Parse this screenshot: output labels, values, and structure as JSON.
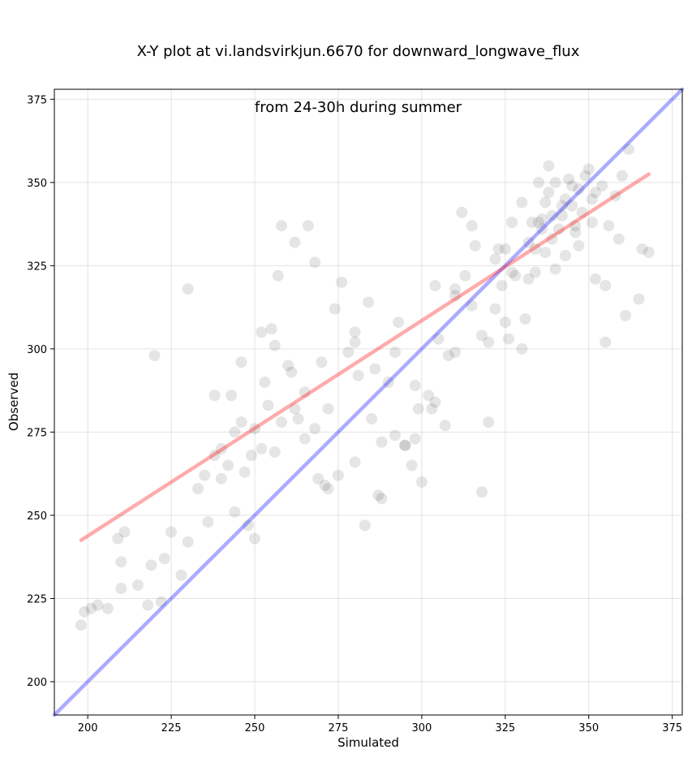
{
  "chart_data": {
    "type": "scatter",
    "title_line1": "X-Y plot at vi.landsvirkjun.6670 for downward_longwave_flux",
    "title_line2": "from 24-30h during summer",
    "xlabel": "Simulated",
    "ylabel": "Observed",
    "xlim": [
      190,
      378
    ],
    "ylim": [
      190,
      378
    ],
    "xticks": [
      200,
      225,
      250,
      275,
      300,
      325,
      350,
      375
    ],
    "yticks": [
      200,
      225,
      250,
      275,
      300,
      325,
      350,
      375
    ],
    "grid": true,
    "colors": {
      "points": "#000000",
      "one_to_one": "#0000ff",
      "fit": "#ff0000"
    },
    "one_to_one_line": {
      "x": [
        190,
        378
      ],
      "y": [
        190,
        378
      ]
    },
    "fit_line": {
      "x": [
        198,
        368
      ],
      "y": [
        242.5,
        352.5
      ]
    },
    "points": {
      "x": [
        198,
        199,
        201,
        203,
        206,
        209,
        210,
        210,
        211,
        215,
        218,
        219,
        222,
        223,
        225,
        228,
        230,
        233,
        235,
        238,
        240,
        242,
        244,
        246,
        247,
        248,
        250,
        252,
        254,
        256,
        258,
        260,
        262,
        265,
        268,
        270,
        272,
        275,
        278,
        280,
        283,
        285,
        288,
        290,
        292,
        295,
        298,
        300,
        302,
        305,
        308,
        310,
        313,
        315,
        318,
        320,
        322,
        324,
        325,
        327,
        328,
        330,
        332,
        333,
        334,
        335,
        336,
        337,
        338,
        339,
        340,
        341,
        342,
        343,
        344,
        345,
        346,
        347,
        348,
        349,
        350,
        351,
        352,
        354,
        356,
        358,
        360,
        361,
        362,
        365,
        366,
        368,
        220,
        230,
        238,
        246,
        252,
        258,
        262,
        268,
        274,
        280,
        286,
        292,
        298,
        304,
        310,
        316,
        322,
        326,
        330,
        334,
        338,
        342,
        346,
        352,
        244,
        249,
        253,
        257,
        263,
        266,
        271,
        276,
        281,
        287,
        293,
        297,
        303,
        307,
        312,
        318,
        323,
        327,
        331,
        335,
        339,
        343,
        347,
        351,
        355,
        240,
        256,
        272,
        288,
        304,
        320,
        336,
        250,
        265,
        280,
        295,
        310,
        325,
        340,
        355,
        236,
        243,
        255,
        261,
        269,
        284,
        299,
        315,
        332,
        337,
        345,
        359
      ],
      "y": [
        217,
        221,
        222,
        223,
        222,
        243,
        236,
        228,
        245,
        229,
        223,
        235,
        224,
        237,
        245,
        232,
        242,
        258,
        262,
        268,
        270,
        265,
        275,
        278,
        263,
        247,
        276,
        270,
        283,
        269,
        278,
        295,
        282,
        287,
        276,
        296,
        258,
        262,
        299,
        266,
        247,
        279,
        272,
        290,
        274,
        271,
        289,
        260,
        286,
        303,
        298,
        299,
        322,
        313,
        304,
        278,
        327,
        319,
        330,
        338,
        322,
        344,
        332,
        338,
        330,
        338,
        336,
        344,
        347,
        333,
        350,
        336,
        340,
        345,
        351,
        343,
        337,
        348,
        341,
        352,
        354,
        345,
        347,
        349,
        337,
        346,
        352,
        310,
        360,
        315,
        330,
        329,
        298,
        318,
        286,
        296,
        305,
        337,
        332,
        326,
        312,
        305,
        294,
        299,
        273,
        284,
        318,
        331,
        312,
        303,
        300,
        323,
        355,
        343,
        335,
        321,
        251,
        268,
        290,
        322,
        279,
        337,
        259,
        320,
        292,
        256,
        308,
        265,
        282,
        277,
        341,
        257,
        330,
        323,
        309,
        350,
        340,
        328,
        331,
        338,
        302,
        261,
        301,
        282,
        255,
        319,
        302,
        339,
        243,
        273,
        302,
        271,
        316,
        308,
        324,
        319,
        248,
        286,
        306,
        293,
        261,
        314,
        282,
        337,
        321,
        329,
        349,
        333
      ]
    }
  }
}
